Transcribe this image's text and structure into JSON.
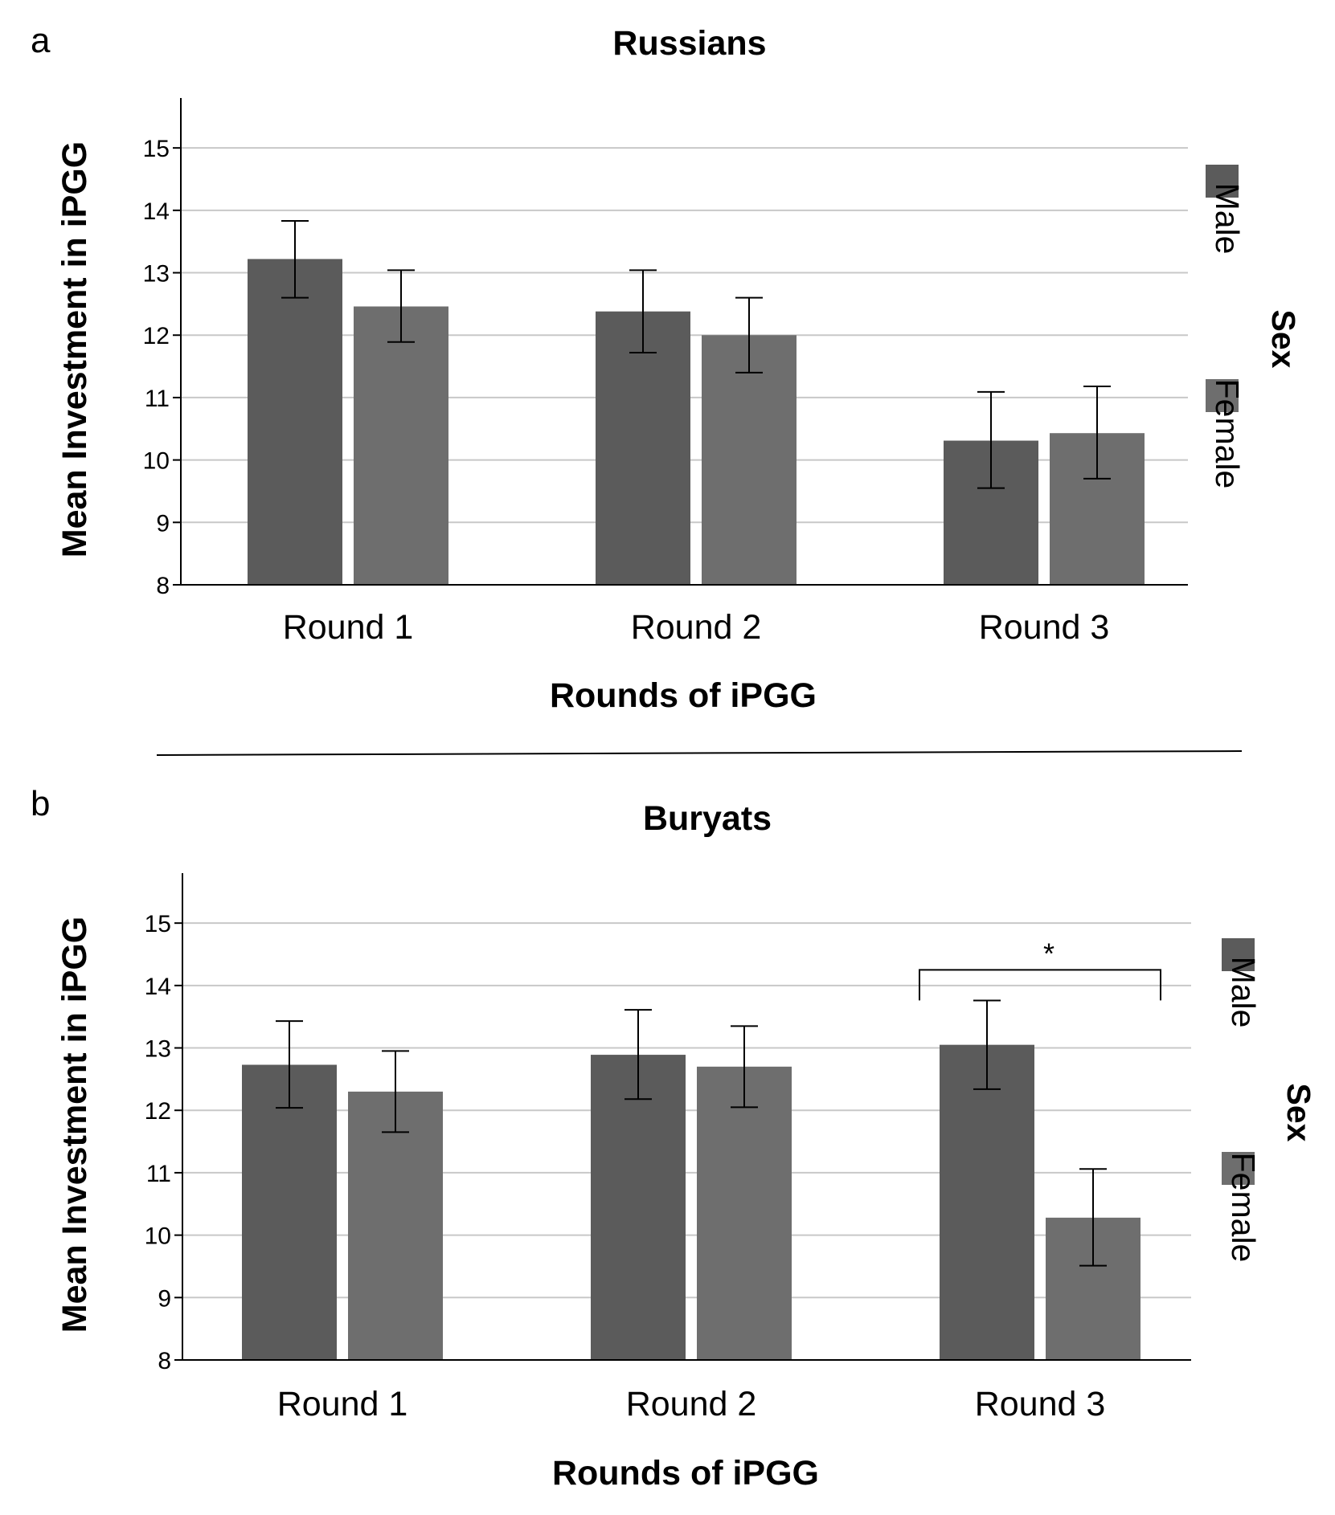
{
  "chart_data": [
    {
      "type": "bar",
      "panel_label": "a",
      "title": "Russians",
      "xlabel": "Rounds of iPGG",
      "ylabel": "Mean Investment in iPGG",
      "categories": [
        "Round 1",
        "Round 2",
        "Round 3"
      ],
      "ylim": [
        8,
        15.8
      ],
      "yticks": [
        8,
        9,
        10,
        11,
        12,
        13,
        14,
        15
      ],
      "grid": true,
      "legend_title": "Sex",
      "legend_position": "right",
      "series": [
        {
          "name": "Male",
          "color": "#5b5b5b",
          "values": [
            13.22,
            12.38,
            10.31
          ],
          "error_low": [
            12.6,
            11.72,
            9.55
          ],
          "error_high": [
            13.83,
            13.04,
            11.09
          ]
        },
        {
          "name": "Female",
          "color": "#6e6e6e",
          "values": [
            12.46,
            12.0,
            10.43
          ],
          "error_low": [
            11.89,
            11.4,
            9.7
          ],
          "error_high": [
            13.04,
            12.6,
            11.18
          ]
        }
      ],
      "annotations": []
    },
    {
      "type": "bar",
      "panel_label": "b",
      "title": "Buryats",
      "xlabel": "Rounds of iPGG",
      "ylabel": "Mean Investment in iPGG",
      "categories": [
        "Round 1",
        "Round 2",
        "Round 3"
      ],
      "ylim": [
        8,
        15.8
      ],
      "yticks": [
        8,
        9,
        10,
        11,
        12,
        13,
        14,
        15
      ],
      "grid": true,
      "legend_title": "Sex",
      "legend_position": "right",
      "series": [
        {
          "name": "Male",
          "color": "#5b5b5b",
          "values": [
            12.73,
            12.89,
            13.05
          ],
          "error_low": [
            12.04,
            12.18,
            12.34
          ],
          "error_high": [
            13.43,
            13.61,
            13.76
          ]
        },
        {
          "name": "Female",
          "color": "#6e6e6e",
          "values": [
            12.3,
            12.7,
            10.28
          ],
          "error_low": [
            11.65,
            12.05,
            9.51
          ],
          "error_high": [
            12.95,
            13.35,
            11.06
          ]
        }
      ],
      "annotations": [
        {
          "text": "*",
          "category": "Round 3",
          "type": "significance-bracket",
          "y": 14.25
        }
      ]
    }
  ]
}
